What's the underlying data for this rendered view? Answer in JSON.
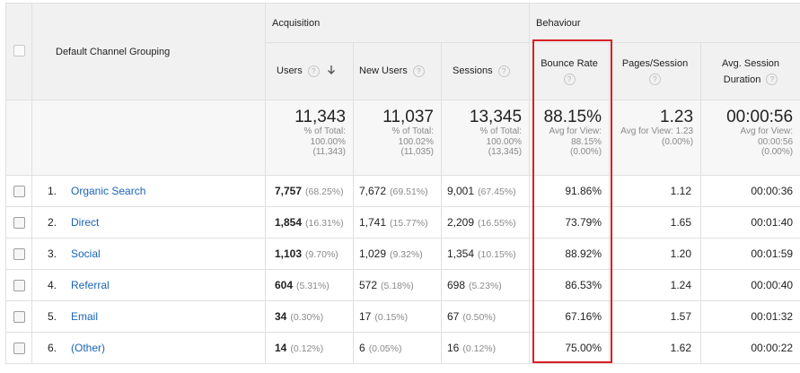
{
  "table": {
    "dimension_header": "Default Channel Grouping",
    "groups": {
      "acquisition": "Acquisition",
      "behaviour": "Behaviour"
    },
    "columns": {
      "users": "Users",
      "new_users": "New Users",
      "sessions": "Sessions",
      "bounce_rate": "Bounce Rate",
      "pages_session": "Pages/Session",
      "avg_session_line1": "Avg. Session",
      "avg_session_line2": "Duration"
    },
    "help_glyph": "?",
    "totals": {
      "users": {
        "value": "11,343",
        "l1": "% of Total:",
        "l2": "100.00%",
        "l3": "(11,343)"
      },
      "new_users": {
        "value": "11,037",
        "l1": "% of Total:",
        "l2": "100.02%",
        "l3": "(11,035)"
      },
      "sessions": {
        "value": "13,345",
        "l1": "% of Total:",
        "l2": "100.00%",
        "l3": "(13,345)"
      },
      "bounce_rate": {
        "value": "88.15%",
        "l1": "Avg for View:",
        "l2": "88.15%",
        "l3": "(0.00%)"
      },
      "pages_session": {
        "value": "1.23",
        "l1": "Avg for View: 1.23",
        "l2": "(0.00%)",
        "l3": ""
      },
      "avg_duration": {
        "value": "00:00:56",
        "l1": "Avg for View:",
        "l2": "00:00:56",
        "l3": "(0.00%)"
      }
    },
    "rows": [
      {
        "idx": "1.",
        "channel": "Organic Search",
        "users": "7,757",
        "users_pct": "(68.25%)",
        "new_users": "7,672",
        "new_users_pct": "(69.51%)",
        "sessions": "9,001",
        "sessions_pct": "(67.45%)",
        "bounce": "91.86%",
        "pages": "1.12",
        "duration": "00:00:36"
      },
      {
        "idx": "2.",
        "channel": "Direct",
        "users": "1,854",
        "users_pct": "(16.31%)",
        "new_users": "1,741",
        "new_users_pct": "(15.77%)",
        "sessions": "2,209",
        "sessions_pct": "(16.55%)",
        "bounce": "73.79%",
        "pages": "1.65",
        "duration": "00:01:40"
      },
      {
        "idx": "3.",
        "channel": "Social",
        "users": "1,103",
        "users_pct": "(9.70%)",
        "new_users": "1,029",
        "new_users_pct": "(9.32%)",
        "sessions": "1,354",
        "sessions_pct": "(10.15%)",
        "bounce": "88.92%",
        "pages": "1.20",
        "duration": "00:01:59"
      },
      {
        "idx": "4.",
        "channel": "Referral",
        "users": "604",
        "users_pct": "(5.31%)",
        "new_users": "572",
        "new_users_pct": "(5.18%)",
        "sessions": "698",
        "sessions_pct": "(5.23%)",
        "bounce": "86.53%",
        "pages": "1.24",
        "duration": "00:00:40"
      },
      {
        "idx": "5.",
        "channel": "Email",
        "users": "34",
        "users_pct": "(0.30%)",
        "new_users": "17",
        "new_users_pct": "(0.15%)",
        "sessions": "67",
        "sessions_pct": "(0.50%)",
        "bounce": "67.16%",
        "pages": "1.57",
        "duration": "00:01:32"
      },
      {
        "idx": "6.",
        "channel": "(Other)",
        "users": "14",
        "users_pct": "(0.12%)",
        "new_users": "6",
        "new_users_pct": "(0.05%)",
        "sessions": "16",
        "sessions_pct": "(0.12%)",
        "bounce": "75.00%",
        "pages": "1.62",
        "duration": "00:00:22"
      }
    ]
  },
  "colors": {
    "link": "#1a64b5",
    "highlight": "#d81f26",
    "header_bg": "#f1f1f1"
  }
}
